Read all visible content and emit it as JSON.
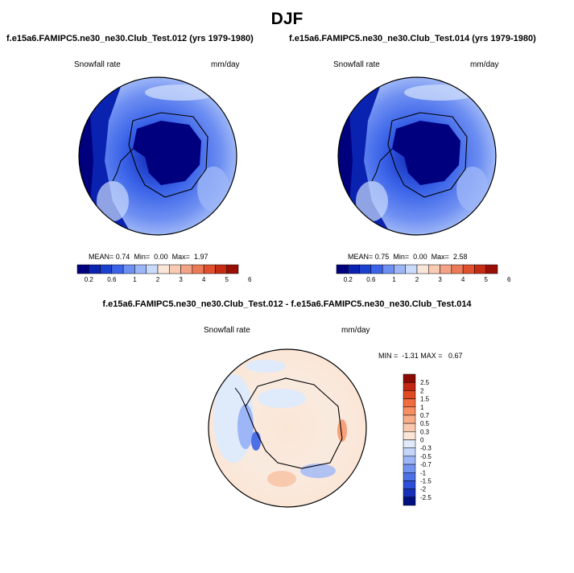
{
  "title": "DJF",
  "panel_left": {
    "subtitle": "f.e15a6.FAMIPC5.ne30_ne30.Club_Test.012 (yrs 1979-1980)",
    "variable": "Snowfall rate",
    "units": "mm/day",
    "stats": {
      "mean_label": "MEAN=",
      "mean": "0.74",
      "min_label": "Min=",
      "min": "0.00",
      "max_label": "Max=",
      "max": "1.97"
    }
  },
  "panel_right": {
    "subtitle": "f.e15a6.FAMIPC5.ne30_ne30.Club_Test.014 (yrs 1979-1980)",
    "variable": "Snowfall rate",
    "units": "mm/day",
    "stats": {
      "mean_label": "MEAN=",
      "mean": "0.75",
      "min_label": "Min=",
      "min": "0.00",
      "max_label": "Max=",
      "max": "2.58"
    }
  },
  "abs_colorbar": {
    "labels": [
      "0.2",
      "0.6",
      "1",
      "2",
      "3",
      "4",
      "5",
      "6"
    ],
    "colors": [
      "#00007f",
      "#0a22b0",
      "#1a40d0",
      "#3a63e8",
      "#6e8ff2",
      "#9db6f7",
      "#c9dafb",
      "#f9e6d8",
      "#f9cbb2",
      "#f4a386",
      "#ec7a56",
      "#e0502c",
      "#c62c14",
      "#9a0f05"
    ]
  },
  "panel_diff": {
    "subtitle": "f.e15a6.FAMIPC5.ne30_ne30.Club_Test.012 - f.e15a6.FAMIPC5.ne30_ne30.Club_Test.014",
    "variable": "Snowfall rate",
    "units": "mm/day",
    "minmax": "MIN =  -1.31 MAX =   0.67"
  },
  "diff_colorbar": {
    "labels": [
      "2.5",
      "2",
      "1.5",
      "1",
      "0.7",
      "0.5",
      "0.3",
      "0",
      "-0.3",
      "-0.5",
      "-0.7",
      "-1",
      "-1.5",
      "-2",
      "-2.5"
    ],
    "colors": [
      "#8b0a05",
      "#c22512",
      "#e04a22",
      "#ef6d3e",
      "#f68e62",
      "#f8ad88",
      "#f9c9ad",
      "#fbe6d6",
      "#dfeafb",
      "#c3d6fa",
      "#9db6f7",
      "#7393f1",
      "#4e70e6",
      "#2c4ed8",
      "#1630b8",
      "#00107f"
    ]
  }
}
